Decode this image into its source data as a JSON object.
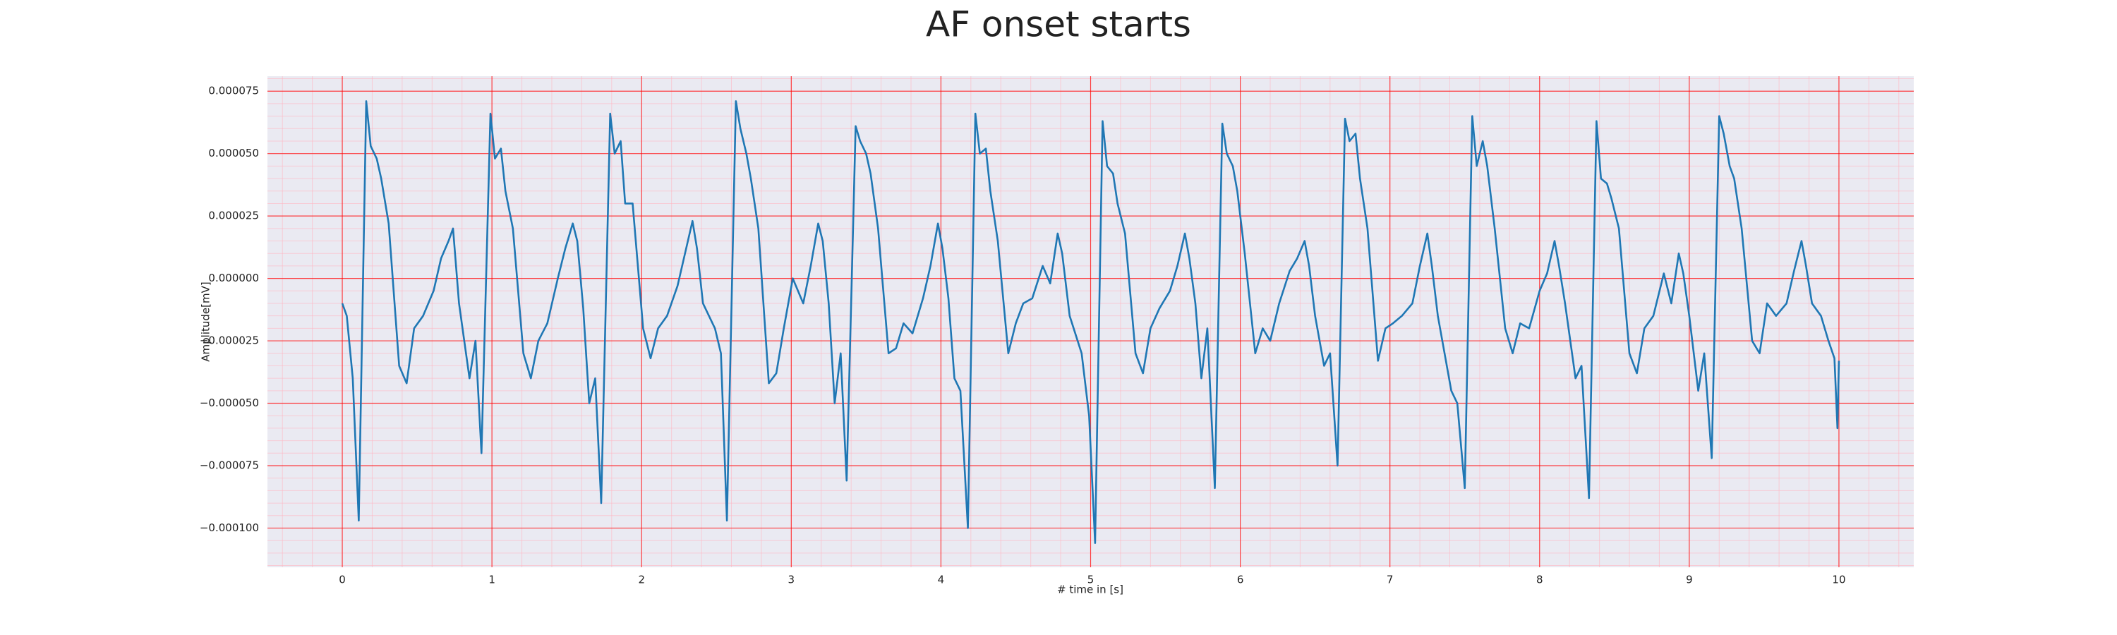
{
  "chart_data": {
    "type": "line",
    "title": "AF onset starts",
    "xlabel": "# time in [s]",
    "ylabel": "Amplitude[mV]",
    "color": "#1f77b4",
    "grid": true,
    "minor_grid": true,
    "grid_color": "#ff0000",
    "minor_grid_color": "#ffb6c1",
    "background": "#eaeaf2",
    "xlim": [
      -0.5,
      10.5
    ],
    "ylim": [
      -0.0001157,
      8.1e-05
    ],
    "xticks": [
      0,
      1,
      2,
      3,
      4,
      5,
      6,
      7,
      8,
      9,
      10
    ],
    "yticks": [
      {
        "value": -0.0001,
        "label": "−0.000100"
      },
      {
        "value": -7.5e-05,
        "label": "−0.000075"
      },
      {
        "value": -5e-05,
        "label": "−0.000050"
      },
      {
        "value": -2.5e-05,
        "label": "−0.000025"
      },
      {
        "value": 0,
        "label": "0.000000"
      },
      {
        "value": 2.5e-05,
        "label": "0.000025"
      },
      {
        "value": 5e-05,
        "label": "0.000050"
      },
      {
        "value": 7.5e-05,
        "label": "0.000075"
      }
    ],
    "x": [
      0.0,
      0.03,
      0.07,
      0.11,
      0.16,
      0.19,
      0.23,
      0.26,
      0.31,
      0.38,
      0.43,
      0.48,
      0.54,
      0.61,
      0.66,
      0.71,
      0.74,
      0.78,
      0.85,
      0.89,
      0.93,
      0.99,
      1.02,
      1.06,
      1.09,
      1.14,
      1.21,
      1.26,
      1.31,
      1.37,
      1.44,
      1.49,
      1.54,
      1.57,
      1.61,
      1.65,
      1.69,
      1.73,
      1.79,
      1.82,
      1.86,
      1.89,
      1.94,
      2.01,
      2.06,
      2.11,
      2.17,
      2.24,
      2.29,
      2.34,
      2.37,
      2.41,
      2.49,
      2.53,
      2.57,
      2.63,
      2.66,
      2.7,
      2.73,
      2.78,
      2.85,
      2.9,
      2.95,
      3.01,
      3.08,
      3.13,
      3.18,
      3.21,
      3.25,
      3.29,
      3.33,
      3.37,
      3.43,
      3.46,
      3.5,
      3.53,
      3.58,
      3.65,
      3.7,
      3.75,
      3.81,
      3.88,
      3.93,
      3.98,
      4.01,
      4.05,
      4.09,
      4.13,
      4.18,
      4.23,
      4.26,
      4.3,
      4.33,
      4.38,
      4.45,
      4.5,
      4.55,
      4.61,
      4.68,
      4.73,
      4.78,
      4.81,
      4.86,
      4.94,
      4.99,
      5.03,
      5.08,
      5.11,
      5.15,
      5.18,
      5.23,
      5.3,
      5.35,
      5.4,
      5.46,
      5.53,
      5.58,
      5.63,
      5.66,
      5.7,
      5.74,
      5.78,
      5.83,
      5.88,
      5.91,
      5.95,
      5.98,
      6.03,
      6.1,
      6.15,
      6.2,
      6.26,
      6.33,
      6.38,
      6.43,
      6.46,
      6.5,
      6.56,
      6.6,
      6.65,
      6.7,
      6.73,
      6.77,
      6.8,
      6.85,
      6.92,
      6.97,
      7.02,
      7.08,
      7.15,
      7.2,
      7.25,
      7.28,
      7.32,
      7.41,
      7.45,
      7.5,
      7.55,
      7.58,
      7.62,
      7.65,
      7.7,
      7.77,
      7.82,
      7.87,
      7.93,
      8.0,
      8.05,
      8.1,
      8.13,
      8.17,
      8.24,
      8.28,
      8.33,
      8.38,
      8.41,
      8.45,
      8.48,
      8.53,
      8.6,
      8.65,
      8.7,
      8.76,
      8.83,
      8.88,
      8.93,
      8.96,
      9.0,
      9.06,
      9.1,
      9.15,
      9.2,
      9.23,
      9.27,
      9.3,
      9.35,
      9.42,
      9.47,
      9.52,
      9.58,
      9.65,
      9.7,
      9.75,
      9.78,
      9.82,
      9.88,
      9.93,
      9.97,
      9.99,
      10.0
    ],
    "values": [
      -1e-05,
      -1.5e-05,
      -4e-05,
      -9.7e-05,
      7.1e-05,
      5.3e-05,
      4.8e-05,
      4e-05,
      2.2e-05,
      -3.5e-05,
      -4.2e-05,
      -2e-05,
      -1.5e-05,
      -5e-06,
      8e-06,
      1.5e-05,
      2e-05,
      -1e-05,
      -4e-05,
      -2.5e-05,
      -7e-05,
      6.6e-05,
      4.8e-05,
      5.2e-05,
      3.5e-05,
      2e-05,
      -3e-05,
      -4e-05,
      -2.5e-05,
      -1.8e-05,
      0,
      1.2e-05,
      2.2e-05,
      1.5e-05,
      -1.2e-05,
      -5e-05,
      -4e-05,
      -9e-05,
      6.6e-05,
      5e-05,
      5.5e-05,
      3e-05,
      3e-05,
      -2e-05,
      -3.2e-05,
      -2e-05,
      -1.5e-05,
      -3e-06,
      1e-05,
      2.3e-05,
      1.2e-05,
      -1e-05,
      -2e-05,
      -3e-05,
      -9.7e-05,
      7.1e-05,
      6e-05,
      5e-05,
      4e-05,
      2e-05,
      -4.2e-05,
      -3.8e-05,
      -2e-05,
      0,
      -1e-05,
      5e-06,
      2.2e-05,
      1.5e-05,
      -1e-05,
      -5e-05,
      -3e-05,
      -8.1e-05,
      6.1e-05,
      5.5e-05,
      5e-05,
      4.2e-05,
      2e-05,
      -3e-05,
      -2.8e-05,
      -1.8e-05,
      -2.2e-05,
      -8e-06,
      5e-06,
      2.2e-05,
      1.2e-05,
      -8e-06,
      -4e-05,
      -4.5e-05,
      -0.0001,
      6.6e-05,
      5e-05,
      5.2e-05,
      3.5e-05,
      1.5e-05,
      -3e-05,
      -1.8e-05,
      -1e-05,
      -8e-06,
      5e-06,
      -2e-06,
      1.8e-05,
      1e-05,
      -1.5e-05,
      -3e-05,
      -5.5e-05,
      -0.000106,
      6.3e-05,
      4.5e-05,
      4.2e-05,
      3e-05,
      1.8e-05,
      -3e-05,
      -3.8e-05,
      -2e-05,
      -1.2e-05,
      -5e-06,
      5e-06,
      1.8e-05,
      8e-06,
      -1e-05,
      -4e-05,
      -2e-05,
      -8.4e-05,
      6.2e-05,
      5e-05,
      4.5e-05,
      3.5e-05,
      1e-05,
      -3e-05,
      -2e-05,
      -2.5e-05,
      -1e-05,
      3e-06,
      8e-06,
      1.5e-05,
      5e-06,
      -1.5e-05,
      -3.5e-05,
      -3e-05,
      -7.5e-05,
      6.4e-05,
      5.5e-05,
      5.8e-05,
      4e-05,
      2e-05,
      -3.3e-05,
      -2e-05,
      -1.8e-05,
      -1.5e-05,
      -1e-05,
      5e-06,
      1.8e-05,
      5e-06,
      -1.5e-05,
      -4.5e-05,
      -5e-05,
      -8.4e-05,
      6.5e-05,
      4.5e-05,
      5.5e-05,
      4.5e-05,
      2e-05,
      -2e-05,
      -3e-05,
      -1.8e-05,
      -2e-05,
      -5e-06,
      2e-06,
      1.5e-05,
      5e-06,
      -1e-05,
      -4e-05,
      -3.5e-05,
      -8.8e-05,
      6.3e-05,
      4e-05,
      3.8e-05,
      3.2e-05,
      2e-05,
      -3e-05,
      -3.8e-05,
      -2e-05,
      -1.5e-05,
      2e-06,
      -1e-05,
      1e-05,
      2e-06,
      -1.5e-05,
      -4.5e-05,
      -3e-05,
      -7.2e-05,
      6.5e-05,
      5.8e-05,
      4.5e-05,
      4e-05,
      2e-05,
      -2.5e-05,
      -3e-05,
      -1e-05,
      -1.5e-05,
      -1e-05,
      3e-06,
      1.5e-05,
      5e-06,
      -1e-05,
      -1.5e-05,
      -2.5e-05,
      -3.2e-05,
      -6e-05,
      -3.3e-05
    ]
  }
}
